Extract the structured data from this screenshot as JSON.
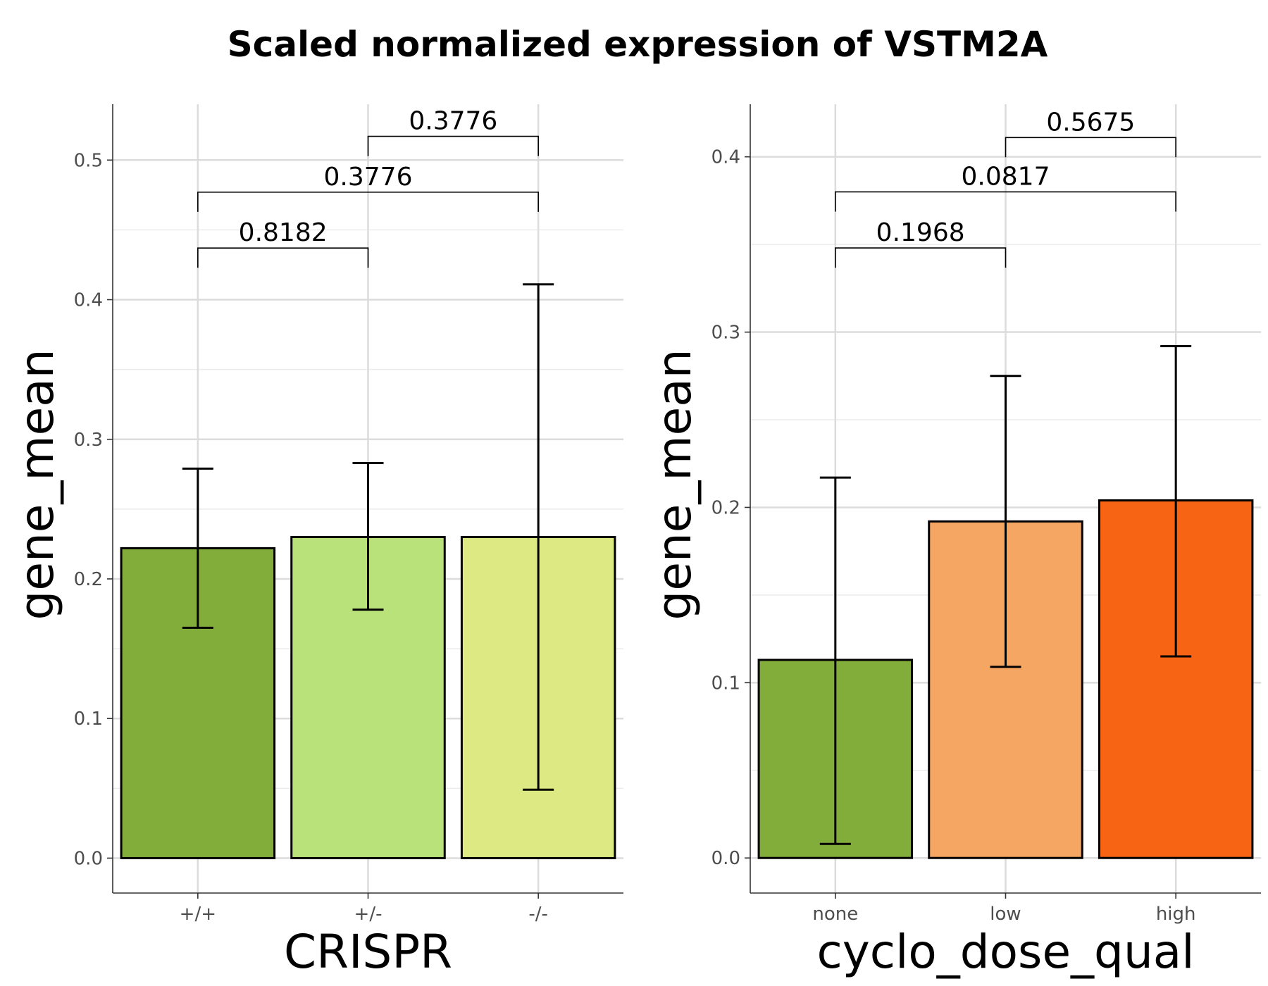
{
  "title": "Scaled normalized expression of VSTM2A",
  "chart_data": [
    {
      "type": "bar",
      "xlabel": "CRISPR",
      "ylabel": "gene_mean",
      "ylim": [
        -0.025,
        0.54
      ],
      "yticks": [
        0.0,
        0.1,
        0.2,
        0.3,
        0.4,
        0.5
      ],
      "ytick_labels": [
        "0.0",
        "0.1",
        "0.2",
        "0.3",
        "0.4",
        "0.5"
      ],
      "categories": [
        "+/+",
        "+/-",
        "-/-"
      ],
      "values": [
        0.222,
        0.23,
        0.23
      ],
      "error_low": [
        0.165,
        0.178,
        0.049
      ],
      "error_high": [
        0.279,
        0.283,
        0.411
      ],
      "colors": [
        "#83ad3b",
        "#b9e27a",
        "#dde983"
      ],
      "comparisons": [
        {
          "from": 0,
          "to": 1,
          "label": "0.8182",
          "y": 0.437
        },
        {
          "from": 0,
          "to": 2,
          "label": "0.3776",
          "y": 0.477
        },
        {
          "from": 1,
          "to": 2,
          "label": "0.3776",
          "y": 0.517
        }
      ],
      "grid": true
    },
    {
      "type": "bar",
      "xlabel": "cyclo_dose_qual",
      "ylabel": "gene_mean",
      "ylim": [
        -0.02,
        0.43
      ],
      "yticks": [
        0.0,
        0.1,
        0.2,
        0.3,
        0.4
      ],
      "ytick_labels": [
        "0.0",
        "0.1",
        "0.2",
        "0.3",
        "0.4"
      ],
      "categories": [
        "none",
        "low",
        "high"
      ],
      "values": [
        0.113,
        0.192,
        0.204
      ],
      "error_low": [
        0.008,
        0.109,
        0.115
      ],
      "error_high": [
        0.217,
        0.275,
        0.292
      ],
      "colors": [
        "#83ad3b",
        "#f5a662",
        "#f76413"
      ],
      "comparisons": [
        {
          "from": 0,
          "to": 1,
          "label": "0.1968",
          "y": 0.348
        },
        {
          "from": 0,
          "to": 2,
          "label": "0.0817",
          "y": 0.38
        },
        {
          "from": 1,
          "to": 2,
          "label": "0.5675",
          "y": 0.411
        }
      ],
      "grid": true
    }
  ]
}
